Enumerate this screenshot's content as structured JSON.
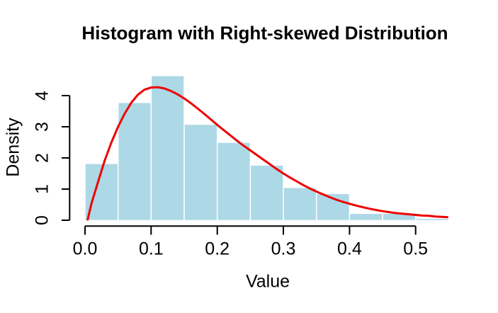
{
  "chart_data": {
    "type": "histogram",
    "title": "Histogram with Right-skewed Distribution",
    "xlabel": "Value",
    "ylabel": "Density",
    "xlim": [
      -0.022,
      0.572
    ],
    "ylim": [
      -0.19,
      4.84
    ],
    "grid": false,
    "legend": null,
    "x_ticks": {
      "values": [
        0.0,
        0.1,
        0.2,
        0.3,
        0.4,
        0.5
      ],
      "labels": [
        "0.0",
        "0.1",
        "0.2",
        "0.3",
        "0.4",
        "0.5"
      ]
    },
    "y_ticks": {
      "values": [
        0,
        1,
        2,
        3,
        4
      ],
      "labels": [
        "0",
        "1",
        "2",
        "3",
        "4"
      ]
    },
    "histogram": {
      "bin_width": 0.05,
      "breaks": [
        0.0,
        0.05,
        0.1,
        0.15,
        0.2,
        0.25,
        0.3,
        0.35,
        0.4,
        0.45,
        0.5,
        0.55
      ],
      "densities": [
        1.82,
        3.78,
        4.64,
        3.08,
        2.5,
        1.77,
        1.05,
        0.86,
        0.22,
        0.22,
        0.06
      ],
      "fill": "#ADD8E6",
      "border": "#FFFFFF"
    },
    "density_curve": {
      "color": "#EE0000",
      "stroke_width": 3,
      "x": [
        0.004,
        0.01,
        0.02,
        0.03,
        0.04,
        0.05,
        0.06,
        0.07,
        0.08,
        0.09,
        0.1,
        0.11,
        0.12,
        0.13,
        0.14,
        0.15,
        0.16,
        0.17,
        0.18,
        0.19,
        0.2,
        0.21,
        0.22,
        0.23,
        0.24,
        0.25,
        0.26,
        0.27,
        0.28,
        0.29,
        0.3,
        0.31,
        0.32,
        0.33,
        0.34,
        0.35,
        0.36,
        0.37,
        0.38,
        0.39,
        0.4,
        0.41,
        0.42,
        0.43,
        0.44,
        0.45,
        0.46,
        0.47,
        0.48,
        0.49,
        0.5,
        0.51,
        0.52,
        0.53,
        0.54,
        0.548
      ],
      "y": [
        0.02,
        0.55,
        1.25,
        1.93,
        2.5,
        3.0,
        3.42,
        3.77,
        4.03,
        4.19,
        4.26,
        4.27,
        4.23,
        4.15,
        4.04,
        3.91,
        3.76,
        3.59,
        3.42,
        3.24,
        3.06,
        2.89,
        2.72,
        2.55,
        2.39,
        2.24,
        2.09,
        1.94,
        1.79,
        1.64,
        1.5,
        1.37,
        1.25,
        1.13,
        1.02,
        0.92,
        0.83,
        0.74,
        0.66,
        0.59,
        0.53,
        0.47,
        0.42,
        0.37,
        0.33,
        0.29,
        0.26,
        0.23,
        0.21,
        0.19,
        0.17,
        0.15,
        0.14,
        0.12,
        0.11,
        0.1
      ]
    },
    "colors": {
      "background": "#FFFFFF",
      "axis": "#000000",
      "text": "#000000"
    }
  }
}
